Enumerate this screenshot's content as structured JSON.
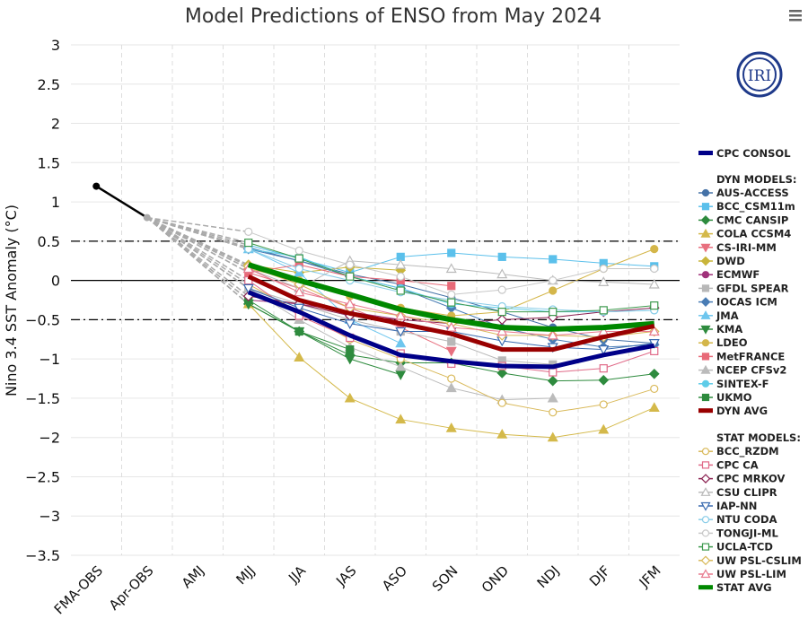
{
  "chart_data": {
    "type": "line",
    "title": "Model Predictions of ENSO from May 2024",
    "ylabel": "Nino 3.4 SST Anomaly (°C)",
    "xlabel": "",
    "ylim": [
      -3.5,
      3
    ],
    "yticks": [
      "3",
      "2.5",
      "2",
      "1.5",
      "1",
      "0.5",
      "0",
      "−0.5",
      "−1",
      "−1.5",
      "−2",
      "−2.5",
      "−3",
      "−3.5"
    ],
    "ytick_values": [
      3,
      2.5,
      2,
      1.5,
      1,
      0.5,
      0,
      -0.5,
      -1,
      -1.5,
      -2,
      -2.5,
      -3,
      -3.5
    ],
    "categories": [
      "FMA-OBS",
      "Apr-OBS",
      "AMJ",
      "MJJ",
      "JJA",
      "JAS",
      "ASO",
      "SON",
      "OND",
      "NDJ",
      "DJF",
      "JFM"
    ],
    "reference_lines": [
      0.5,
      0,
      -0.5
    ],
    "grid": true,
    "legend_position": "right",
    "observed": {
      "values": [
        1.2,
        0.8
      ]
    },
    "forecast_categories": [
      "MJJ",
      "JJA",
      "JAS",
      "ASO",
      "SON",
      "OND",
      "NDJ",
      "DJF",
      "JFM"
    ],
    "consol": {
      "name": "CPC CONSOL",
      "color": "#000088",
      "values": [
        -0.15,
        -0.4,
        -0.7,
        -0.95,
        -1.03,
        -1.09,
        -1.1,
        -0.95,
        -0.83
      ]
    },
    "dyn_header": "DYN MODELS:",
    "dyn_models": [
      {
        "name": "AUS-ACCESS",
        "color": "#4572A7",
        "marker": "circle",
        "values": [
          0.42,
          0.25,
          0.08,
          -0.05,
          -0.22,
          -0.4,
          -0.6,
          -0.75,
          -0.8
        ]
      },
      {
        "name": "BCC_CSM11m",
        "color": "#5BC0EB",
        "marker": "square",
        "values": [
          0.45,
          0.28,
          0.1,
          0.3,
          0.35,
          0.3,
          0.27,
          0.22,
          0.18
        ]
      },
      {
        "name": "CMC CANSIP",
        "color": "#2E8B3E",
        "marker": "diamond",
        "values": [
          -0.3,
          -0.65,
          -0.95,
          -1.05,
          -1.05,
          -1.18,
          -1.28,
          -1.27,
          -1.19
        ]
      },
      {
        "name": "COLA CCSM4",
        "color": "#D4B94A",
        "marker": "triangle",
        "values": [
          -0.3,
          -0.98,
          -1.5,
          -1.77,
          -1.88,
          -1.96,
          -2.0,
          -1.9,
          -1.62
        ]
      },
      {
        "name": "CS-IRI-MM",
        "color": "#E8707F",
        "marker": "triangle-down",
        "values": [
          0.1,
          -0.1,
          -0.35,
          -0.6,
          -0.9,
          null,
          null,
          null,
          null
        ]
      },
      {
        "name": "DWD",
        "color": "#C9B53A",
        "marker": "diamond",
        "values": [
          0.2,
          0.1,
          0.17,
          0.13,
          null,
          null,
          null,
          null,
          null
        ]
      },
      {
        "name": "ECMWF",
        "color": "#A0327A",
        "marker": "circle",
        "values": [
          -0.25,
          -0.3,
          -0.4,
          -0.5,
          null,
          null,
          null,
          null,
          null
        ]
      },
      {
        "name": "GFDL SPEAR",
        "color": "#B8B8B8",
        "marker": "square",
        "values": [
          -0.1,
          -0.3,
          -0.5,
          -0.65,
          -0.78,
          -1.02,
          -1.07,
          null,
          null
        ]
      },
      {
        "name": "IOCAS ICM",
        "color": "#4A7DB5",
        "marker": "diamond",
        "values": [
          0.4,
          0.25,
          0.05,
          -0.1,
          -0.35,
          -0.6,
          -0.75,
          -0.85,
          -0.82
        ]
      },
      {
        "name": "JMA",
        "color": "#6EC6EE",
        "marker": "triangle",
        "values": [
          0.4,
          0.1,
          -0.5,
          -0.8,
          null,
          null,
          null,
          null,
          null
        ]
      },
      {
        "name": "KMA",
        "color": "#2E8B3E",
        "marker": "triangle-down",
        "values": [
          -0.3,
          -0.65,
          -1.0,
          -1.2,
          null,
          null,
          null,
          null,
          null
        ]
      },
      {
        "name": "LDEO",
        "color": "#D4B64A",
        "marker": "circle",
        "values": [
          0.15,
          0.0,
          -0.2,
          -0.35,
          -0.45,
          -0.4,
          -0.13,
          0.15,
          0.4
        ]
      },
      {
        "name": "MetFRANCE",
        "color": "#E86A78",
        "marker": "square",
        "values": [
          0.1,
          0.2,
          0.05,
          0.0,
          -0.07,
          null,
          null,
          null,
          null
        ]
      },
      {
        "name": "NCEP CFSv2",
        "color": "#BBBBBB",
        "marker": "triangle",
        "values": [
          -0.1,
          -0.5,
          -0.85,
          -1.1,
          -1.37,
          -1.52,
          -1.5,
          null,
          null
        ]
      },
      {
        "name": "SINTEX-F",
        "color": "#5ECCE8",
        "marker": "circle",
        "values": [
          0.4,
          0.3,
          0.05,
          -0.1,
          -0.3,
          -0.35,
          -0.4,
          -0.4,
          -0.38
        ]
      },
      {
        "name": "UKMO",
        "color": "#2E8B3E",
        "marker": "square",
        "values": [
          -0.25,
          -0.65,
          -0.88,
          null,
          null,
          null,
          null,
          null,
          null
        ]
      }
    ],
    "dyn_avg": {
      "name": "DYN AVG",
      "color": "#990000",
      "values": [
        0.05,
        -0.25,
        -0.42,
        -0.55,
        -0.68,
        -0.88,
        -0.88,
        -0.72,
        -0.58
      ]
    },
    "stat_header": "STAT MODELS:",
    "stat_models": [
      {
        "name": "BCC_RZDM",
        "color": "#D9B95A",
        "marker": "circle",
        "values": [
          -0.05,
          -0.4,
          -0.75,
          -1.0,
          -1.25,
          -1.56,
          -1.68,
          -1.58,
          -1.38
        ]
      },
      {
        "name": "CPC CA",
        "color": "#E06A88",
        "marker": "square",
        "values": [
          0.0,
          -0.45,
          -0.73,
          -0.93,
          -1.06,
          -1.09,
          -1.17,
          -1.12,
          -0.9
        ]
      },
      {
        "name": "CPC MRKOV",
        "color": "#8B2252",
        "marker": "diamond",
        "values": [
          -0.2,
          -0.3,
          -0.45,
          -0.5,
          -0.55,
          -0.5,
          -0.47,
          -0.4,
          -0.35
        ]
      },
      {
        "name": "CSU CLIPR",
        "color": "#BBBBBB",
        "marker": "triangle",
        "values": [
          0.15,
          -0.1,
          0.25,
          0.2,
          0.15,
          0.08,
          0.0,
          -0.02,
          -0.05
        ]
      },
      {
        "name": "IAP-NN",
        "color": "#3A6BB0",
        "marker": "triangle-down",
        "values": [
          -0.1,
          -0.35,
          -0.55,
          -0.65,
          -0.65,
          -0.77,
          -0.85,
          -0.88,
          -0.8
        ]
      },
      {
        "name": "NTU CODA",
        "color": "#8ACDE8",
        "marker": "circle",
        "values": [
          0.4,
          0.15,
          0.0,
          -0.15,
          -0.25,
          -0.33,
          -0.37,
          -0.4,
          -0.38
        ]
      },
      {
        "name": "TONGJI-ML",
        "color": "#C8C8C8",
        "marker": "circle",
        "values": [
          0.62,
          0.38,
          0.2,
          0.05,
          -0.18,
          -0.12,
          0.0,
          0.15,
          0.15
        ]
      },
      {
        "name": "UCLA-TCD",
        "color": "#3E9A4E",
        "marker": "square",
        "values": [
          0.48,
          0.28,
          0.05,
          -0.13,
          -0.28,
          -0.4,
          -0.4,
          -0.38,
          -0.32
        ]
      },
      {
        "name": "UW PSL-CSLIM",
        "color": "#D9B95A",
        "marker": "diamond",
        "values": [
          0.18,
          -0.05,
          -0.35,
          -0.45,
          -0.55,
          -0.7,
          -0.7,
          -0.72,
          -0.65
        ]
      },
      {
        "name": "UW PSL-LIM",
        "color": "#E87A8E",
        "marker": "triangle",
        "values": [
          0.15,
          -0.15,
          -0.3,
          -0.45,
          -0.6,
          -0.65,
          -0.7,
          -0.65,
          -0.65
        ]
      }
    ],
    "stat_avg": {
      "name": "STAT AVG",
      "color": "#008800",
      "values": [
        0.2,
        0.0,
        -0.18,
        -0.37,
        -0.5,
        -0.6,
        -0.62,
        -0.6,
        -0.55
      ]
    }
  },
  "logo": {
    "text": "IRI",
    "color": "#1F3A8A"
  },
  "menu_icon": "hamburger-menu-icon"
}
